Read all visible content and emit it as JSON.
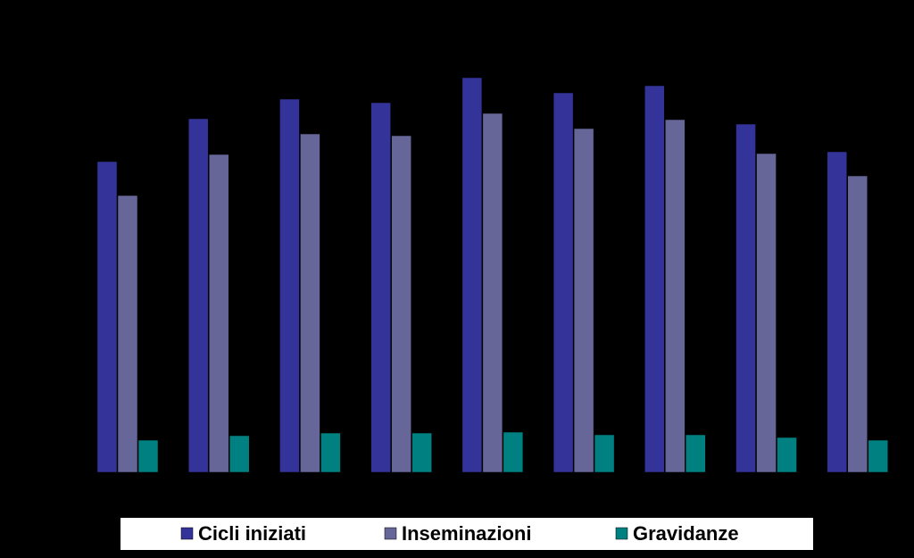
{
  "chart_data": {
    "type": "bar",
    "categories": [
      null,
      null,
      null,
      null,
      null,
      null,
      null,
      null,
      null
    ],
    "series": [
      {
        "name": "Cicli iniziati",
        "color": "#333399",
        "values": [
          348,
          396,
          418,
          414,
          442,
          425,
          433,
          390,
          359
        ]
      },
      {
        "name": "Inseminazioni",
        "color": "#666699",
        "values": [
          310,
          356,
          379,
          377,
          402,
          385,
          395,
          357,
          332
        ]
      },
      {
        "name": "Gravidanze",
        "color": "#008080",
        "values": [
          36,
          41,
          44,
          44,
          45,
          42,
          42,
          39,
          36
        ]
      }
    ],
    "ylim": [
      0,
      470
    ],
    "annotations": [
      "(",
      "("
    ]
  }
}
